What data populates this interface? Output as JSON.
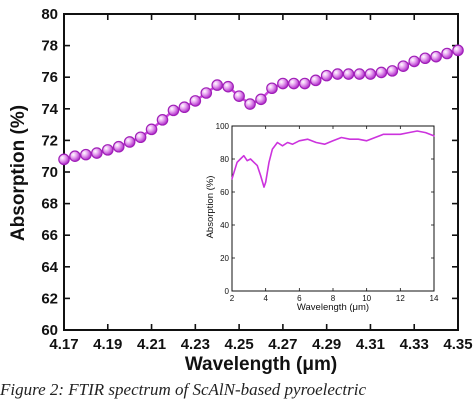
{
  "chart_data": [
    {
      "type": "line",
      "xlabel": "Wavelength (μm)",
      "ylabel": "Absorption (%)",
      "xlim": [
        4.17,
        4.35
      ],
      "ylim": [
        60,
        80
      ],
      "xticks": [
        "4.17",
        "4.19",
        "4.21",
        "4.23",
        "4.25",
        "4.27",
        "4.29",
        "4.31",
        "4.33",
        "4.35"
      ],
      "yticks": [
        "60",
        "62",
        "64",
        "66",
        "68",
        "70",
        "72",
        "74",
        "76",
        "78",
        "80"
      ],
      "marker": "circle",
      "color": "#cc44dd",
      "series": [
        {
          "x": [
            4.17,
            4.175,
            4.18,
            4.185,
            4.19,
            4.195,
            4.2,
            4.205,
            4.21,
            4.215,
            4.22,
            4.225,
            4.23,
            4.235,
            4.24,
            4.245,
            4.25,
            4.255,
            4.26,
            4.265,
            4.27,
            4.275,
            4.28,
            4.285,
            4.29,
            4.295,
            4.3,
            4.305,
            4.31,
            4.315,
            4.32,
            4.325,
            4.33,
            4.335,
            4.34,
            4.345,
            4.35
          ],
          "y": [
            70.8,
            71.0,
            71.1,
            71.2,
            71.4,
            71.6,
            71.9,
            72.2,
            72.7,
            73.3,
            73.9,
            74.1,
            74.5,
            75.0,
            75.5,
            75.4,
            74.8,
            74.3,
            74.6,
            75.3,
            75.6,
            75.6,
            75.6,
            75.8,
            76.1,
            76.2,
            76.2,
            76.2,
            76.2,
            76.3,
            76.4,
            76.7,
            77.0,
            77.2,
            77.3,
            77.5,
            77.7
          ]
        }
      ]
    },
    {
      "type": "line",
      "role": "inset",
      "xlabel": "Wavelength (μm)",
      "ylabel": "Absorption (%)",
      "xlim": [
        2,
        14
      ],
      "ylim": [
        0,
        100
      ],
      "xticks": [
        "2",
        "4",
        "6",
        "8",
        "10",
        "12",
        "14"
      ],
      "yticks": [
        "0",
        "20",
        "40",
        "60",
        "80",
        "100"
      ],
      "color": "#cc33dd",
      "series": [
        {
          "x": [
            2.0,
            2.3,
            2.5,
            2.7,
            2.9,
            3.1,
            3.3,
            3.5,
            3.7,
            3.9,
            4.0,
            4.2,
            4.4,
            4.7,
            5.0,
            5.3,
            5.6,
            6.0,
            6.5,
            7.0,
            7.5,
            8.0,
            8.5,
            9.0,
            9.5,
            10.0,
            10.5,
            11.0,
            11.5,
            12.0,
            12.5,
            13.0,
            13.5,
            14.0
          ],
          "y": [
            68,
            78,
            80,
            82,
            79,
            80,
            78,
            76,
            70,
            63,
            66,
            78,
            86,
            90,
            88,
            90,
            89,
            91,
            92,
            90,
            89,
            91,
            93,
            92,
            92,
            91,
            93,
            95,
            95,
            95,
            96,
            97,
            96,
            94
          ]
        }
      ]
    }
  ],
  "caption": "Figure 2: FTIR spectrum of ScAlN-based pyroelectric"
}
